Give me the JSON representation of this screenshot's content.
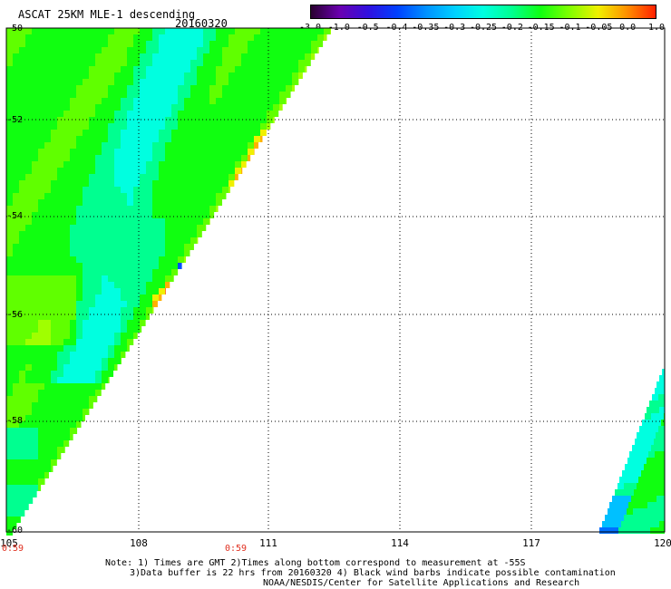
{
  "header": {
    "title": "ASCAT 25KM MLE-1 descending",
    "date": "20160320"
  },
  "colorbar": {
    "labels": [
      "-3.0",
      "-1.0",
      "-0.5",
      "-0.4",
      "-0.35",
      "-0.3",
      "-0.25",
      "-0.2",
      "-0.15",
      "-0.1",
      "-0.05",
      "0.0",
      "1.0"
    ],
    "colors": [
      "#2a0030",
      "#6a00b0",
      "#3010e0",
      "#0040ff",
      "#0090ff",
      "#00d0ff",
      "#00ffe0",
      "#00ff90",
      "#10ff10",
      "#80ff00",
      "#f0f000",
      "#ff9000",
      "#ff2000"
    ]
  },
  "axes": {
    "lat_labels": [
      "-50",
      "-52",
      "-54",
      "-56",
      "-58",
      "-60"
    ],
    "lon_labels": [
      "105",
      "108",
      "111",
      "114",
      "117",
      "120"
    ]
  },
  "times": {
    "left": "0:59",
    "middle": "0:59"
  },
  "notes": {
    "line1": "Note: 1) Times are GMT 2)Times along bottom correspond to measurement at -55S",
    "line2": "3)Data buffer is 22 hrs from 20160320 4) Black wind barbs indicate possible contamination",
    "line3": "NOAA/NESDIS/Center for Satellite Applications and Research"
  }
}
